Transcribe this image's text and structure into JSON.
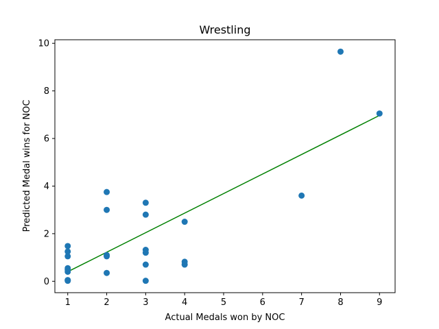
{
  "chart_data": {
    "type": "scatter",
    "title": "Wrestling",
    "xlabel": "Actual Medals won by NOC",
    "ylabel": "Predicted Medal wins for NOC",
    "xlim": [
      0.67,
      9.4
    ],
    "ylim": [
      -0.48,
      10.15
    ],
    "xticks": [
      1,
      2,
      3,
      4,
      5,
      6,
      7,
      8,
      9
    ],
    "yticks": [
      0,
      2,
      4,
      6,
      8,
      10
    ],
    "grid": false,
    "marker_color": "#1f77b4",
    "line_color": "#008000",
    "points": [
      {
        "x": 1,
        "y": 1.48
      },
      {
        "x": 1,
        "y": 1.25
      },
      {
        "x": 1,
        "y": 1.05
      },
      {
        "x": 1,
        "y": 0.55
      },
      {
        "x": 1,
        "y": 0.48
      },
      {
        "x": 1,
        "y": 0.4
      },
      {
        "x": 1,
        "y": 0.05
      },
      {
        "x": 1,
        "y": 0.02
      },
      {
        "x": 2,
        "y": 3.75
      },
      {
        "x": 2,
        "y": 3.0
      },
      {
        "x": 2,
        "y": 1.1
      },
      {
        "x": 2,
        "y": 1.05
      },
      {
        "x": 2,
        "y": 0.35
      },
      {
        "x": 3,
        "y": 3.3
      },
      {
        "x": 3,
        "y": 2.8
      },
      {
        "x": 3,
        "y": 1.32
      },
      {
        "x": 3,
        "y": 1.2
      },
      {
        "x": 3,
        "y": 0.7
      },
      {
        "x": 3,
        "y": 0.02
      },
      {
        "x": 4,
        "y": 2.5
      },
      {
        "x": 4,
        "y": 0.82
      },
      {
        "x": 4,
        "y": 0.7
      },
      {
        "x": 7,
        "y": 3.6
      },
      {
        "x": 8,
        "y": 9.65
      },
      {
        "x": 9,
        "y": 7.05
      }
    ],
    "fit_line": {
      "x": [
        1,
        9
      ],
      "y": [
        0.4,
        6.97
      ]
    }
  }
}
